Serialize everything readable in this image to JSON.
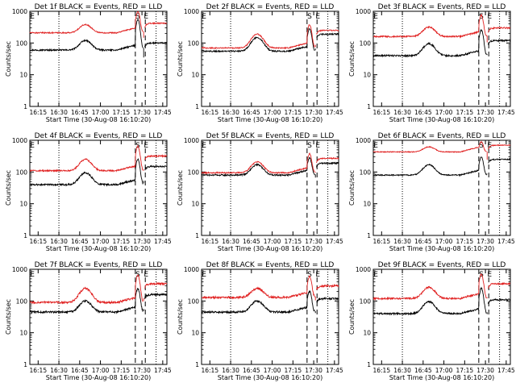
{
  "page": {
    "black_color": "#000000",
    "red_color": "#e02020"
  },
  "panels_layout": "3x3 grid, row-major",
  "chart_data": [
    {
      "type": "line",
      "title": "Det 1f BLACK = Events, RED = LLD",
      "xlabel": "Start Time (30-Aug-08 16:10:20)",
      "ylabel": "Counts/sec",
      "yscale": "log",
      "ylim": [
        1,
        1000
      ],
      "xlim": [
        16.15,
        17.8
      ],
      "xticks": [
        "16:15",
        "16:30",
        "16:45",
        "17:00",
        "17:15",
        "17:30",
        "17:45"
      ],
      "yticks": [
        "1",
        "10",
        "100",
        "1000"
      ],
      "markers": [
        {
          "label": "E",
          "x": 16.18
        },
        {
          "label": "S",
          "x": 17.45
        },
        {
          "label": "E",
          "x": 17.55
        }
      ],
      "vlines": [
        {
          "x": 16.5,
          "style": "dotted"
        },
        {
          "x": 17.42,
          "style": "dashed"
        },
        {
          "x": 17.54,
          "style": "dashed"
        },
        {
          "x": 17.67,
          "style": "dotted"
        }
      ],
      "series": [
        {
          "name": "Events",
          "color": "#000000",
          "base": 60,
          "hump": 120,
          "peak": 550,
          "noise": 0.05,
          "after": 100
        },
        {
          "name": "LLD",
          "color": "#e02020",
          "base": 210,
          "hump": 380,
          "peak": 1000,
          "noise": 0.04,
          "after": 420
        }
      ]
    },
    {
      "type": "line",
      "title": "Det 2f BLACK = Events, RED = LLD",
      "xlabel": "Start Time (30-Aug-08 16:10:20)",
      "ylabel": "Counts/sec",
      "yscale": "log",
      "ylim": [
        1,
        1000
      ],
      "xlim": [
        16.15,
        17.8
      ],
      "xticks": [
        "16:15",
        "16:30",
        "16:45",
        "17:00",
        "17:15",
        "17:30",
        "17:45"
      ],
      "yticks": [
        "1",
        "10",
        "100",
        "1000"
      ],
      "markers": [
        {
          "label": "E",
          "x": 16.18
        },
        {
          "label": "S",
          "x": 17.45
        },
        {
          "label": "E",
          "x": 17.55
        }
      ],
      "vlines": [
        {
          "x": 16.5,
          "style": "dotted"
        },
        {
          "x": 17.42,
          "style": "dashed"
        },
        {
          "x": 17.54,
          "style": "dashed"
        },
        {
          "x": 17.67,
          "style": "dotted"
        }
      ],
      "series": [
        {
          "name": "Events",
          "color": "#000000",
          "base": 55,
          "hump": 150,
          "peak": 280,
          "noise": 0.05,
          "after": 190
        },
        {
          "name": "LLD",
          "color": "#e02020",
          "base": 70,
          "hump": 190,
          "peak": 380,
          "noise": 0.04,
          "after": 250
        }
      ]
    },
    {
      "type": "line",
      "title": "Det 3f BLACK = Events, RED = LLD",
      "xlabel": "Start Time (30-Aug-08 16:10:20)",
      "ylabel": "Counts/sec",
      "yscale": "log",
      "ylim": [
        1,
        1000
      ],
      "xlim": [
        16.15,
        17.8
      ],
      "xticks": [
        "16:15",
        "16:30",
        "16:45",
        "17:00",
        "17:15",
        "17:30",
        "17:45"
      ],
      "yticks": [
        "1",
        "10",
        "100",
        "1000"
      ],
      "markers": [
        {
          "label": "E",
          "x": 16.18
        },
        {
          "label": "S",
          "x": 17.45
        },
        {
          "label": "E",
          "x": 17.55
        }
      ],
      "vlines": [
        {
          "x": 16.5,
          "style": "dotted"
        },
        {
          "x": 17.42,
          "style": "dashed"
        },
        {
          "x": 17.54,
          "style": "dashed"
        },
        {
          "x": 17.67,
          "style": "dotted"
        }
      ],
      "series": [
        {
          "name": "Events",
          "color": "#000000",
          "base": 40,
          "hump": 95,
          "peak": 260,
          "noise": 0.06,
          "after": 120
        },
        {
          "name": "LLD",
          "color": "#e02020",
          "base": 160,
          "hump": 320,
          "peak": 750,
          "noise": 0.05,
          "after": 300
        }
      ]
    },
    {
      "type": "line",
      "title": "Det 4f BLACK = Events, RED = LLD",
      "xlabel": "Start Time (30-Aug-08 16:10:20)",
      "ylabel": "Counts/sec",
      "yscale": "log",
      "ylim": [
        1,
        1000
      ],
      "xlim": [
        16.15,
        17.8
      ],
      "xticks": [
        "16:15",
        "16:30",
        "16:45",
        "17:00",
        "17:15",
        "17:30",
        "17:45"
      ],
      "yticks": [
        "1",
        "10",
        "100",
        "1000"
      ],
      "markers": [
        {
          "label": "E",
          "x": 16.18
        },
        {
          "label": "S",
          "x": 17.45
        },
        {
          "label": "E",
          "x": 17.55
        }
      ],
      "vlines": [
        {
          "x": 16.5,
          "style": "dotted"
        },
        {
          "x": 17.42,
          "style": "dashed"
        },
        {
          "x": 17.54,
          "style": "dashed"
        },
        {
          "x": 17.67,
          "style": "dotted"
        }
      ],
      "series": [
        {
          "name": "Events",
          "color": "#000000",
          "base": 40,
          "hump": 95,
          "peak": 250,
          "noise": 0.06,
          "after": 150
        },
        {
          "name": "LLD",
          "color": "#e02020",
          "base": 110,
          "hump": 250,
          "peak": 650,
          "noise": 0.05,
          "after": 320
        }
      ]
    },
    {
      "type": "line",
      "title": "Det 5f BLACK = Events, RED = LLD",
      "xlabel": "Start Time (30-Aug-08 16:10:20)",
      "ylabel": "Counts/sec",
      "yscale": "log",
      "ylim": [
        1,
        1000
      ],
      "xlim": [
        16.15,
        17.8
      ],
      "xticks": [
        "16:15",
        "16:30",
        "16:45",
        "17:00",
        "17:15",
        "17:30",
        "17:45"
      ],
      "yticks": [
        "1",
        "10",
        "100",
        "1000"
      ],
      "markers": [
        {
          "label": "E",
          "x": 16.18
        },
        {
          "label": "S",
          "x": 17.45
        },
        {
          "label": "E",
          "x": 17.55
        }
      ],
      "vlines": [
        {
          "x": 16.5,
          "style": "dotted"
        },
        {
          "x": 17.42,
          "style": "dashed"
        },
        {
          "x": 17.54,
          "style": "dashed"
        },
        {
          "x": 17.67,
          "style": "dotted"
        }
      ],
      "series": [
        {
          "name": "Events",
          "color": "#000000",
          "base": 80,
          "hump": 170,
          "peak": 280,
          "noise": 0.05,
          "after": 190
        },
        {
          "name": "LLD",
          "color": "#e02020",
          "base": 95,
          "hump": 210,
          "peak": 380,
          "noise": 0.04,
          "after": 270
        }
      ]
    },
    {
      "type": "line",
      "title": "Det 6f BLACK = Events, RED = LLD",
      "xlabel": "Start Time (30-Aug-08 16:10:20)",
      "ylabel": "Counts/sec",
      "yscale": "log",
      "ylim": [
        1,
        1000
      ],
      "xlim": [
        16.15,
        17.8
      ],
      "xticks": [
        "16:15",
        "16:30",
        "16:45",
        "17:00",
        "17:15",
        "17:30",
        "17:45"
      ],
      "yticks": [
        "1",
        "10",
        "100",
        "1000"
      ],
      "markers": [
        {
          "label": "E",
          "x": 16.18
        },
        {
          "label": "S",
          "x": 17.45
        },
        {
          "label": "E",
          "x": 17.55
        }
      ],
      "vlines": [
        {
          "x": 16.5,
          "style": "dotted"
        },
        {
          "x": 17.42,
          "style": "dashed"
        },
        {
          "x": 17.54,
          "style": "dashed"
        },
        {
          "x": 17.67,
          "style": "dotted"
        }
      ],
      "series": [
        {
          "name": "Events",
          "color": "#000000",
          "base": 80,
          "hump": 170,
          "peak": 300,
          "noise": 0.04,
          "after": 250
        },
        {
          "name": "LLD",
          "color": "#e02020",
          "base": 430,
          "hump": 620,
          "peak": 900,
          "noise": 0.03,
          "after": 700
        }
      ]
    },
    {
      "type": "line",
      "title": "Det 7f BLACK = Events, RED = LLD",
      "xlabel": "Start Time (30-Aug-08 16:10:20)",
      "ylabel": "Counts/sec",
      "yscale": "log",
      "ylim": [
        1,
        1000
      ],
      "xlim": [
        16.15,
        17.8
      ],
      "xticks": [
        "16:15",
        "16:30",
        "16:45",
        "17:00",
        "17:15",
        "17:30",
        "17:45"
      ],
      "yticks": [
        "1",
        "10",
        "100",
        "1000"
      ],
      "markers": [
        {
          "label": "E",
          "x": 16.18
        },
        {
          "label": "S",
          "x": 17.45
        },
        {
          "label": "E",
          "x": 17.55
        }
      ],
      "vlines": [
        {
          "x": 16.5,
          "style": "dotted"
        },
        {
          "x": 17.42,
          "style": "dashed"
        },
        {
          "x": 17.54,
          "style": "dashed"
        },
        {
          "x": 17.67,
          "style": "dotted"
        }
      ],
      "series": [
        {
          "name": "Events",
          "color": "#000000",
          "base": 45,
          "hump": 100,
          "peak": 250,
          "noise": 0.07,
          "after": 160
        },
        {
          "name": "LLD",
          "color": "#e02020",
          "base": 90,
          "hump": 250,
          "peak": 650,
          "noise": 0.07,
          "after": 350
        }
      ]
    },
    {
      "type": "line",
      "title": "Det 8f BLACK = Events, RED = LLD",
      "xlabel": "Start Time (30-Aug-08 16:10:20)",
      "ylabel": "Counts/sec",
      "yscale": "log",
      "ylim": [
        1,
        1000
      ],
      "xlim": [
        16.15,
        17.8
      ],
      "xticks": [
        "16:15",
        "16:30",
        "16:45",
        "17:00",
        "17:15",
        "17:30",
        "17:45"
      ],
      "yticks": [
        "1",
        "10",
        "100",
        "1000"
      ],
      "markers": [
        {
          "label": "E",
          "x": 16.18
        },
        {
          "label": "S",
          "x": 17.45
        },
        {
          "label": "E",
          "x": 17.55
        }
      ],
      "vlines": [
        {
          "x": 16.5,
          "style": "dotted"
        },
        {
          "x": 17.42,
          "style": "dashed"
        },
        {
          "x": 17.54,
          "style": "dashed"
        },
        {
          "x": 17.67,
          "style": "dotted"
        }
      ],
      "series": [
        {
          "name": "Events",
          "color": "#000000",
          "base": 45,
          "hump": 100,
          "peak": 200,
          "noise": 0.07,
          "after": 120
        },
        {
          "name": "LLD",
          "color": "#e02020",
          "base": 130,
          "hump": 250,
          "peak": 600,
          "noise": 0.07,
          "after": 300
        }
      ]
    },
    {
      "type": "line",
      "title": "Det 9f BLACK = Events, RED = LLD",
      "xlabel": "Start Time (30-Aug-08 16:10:20)",
      "ylabel": "Counts/sec",
      "yscale": "log",
      "ylim": [
        1,
        1000
      ],
      "xlim": [
        16.15,
        17.8
      ],
      "xticks": [
        "16:15",
        "16:30",
        "16:45",
        "17:00",
        "17:15",
        "17:30",
        "17:45"
      ],
      "yticks": [
        "1",
        "10",
        "100",
        "1000"
      ],
      "markers": [
        {
          "label": "E",
          "x": 16.18
        },
        {
          "label": "S",
          "x": 17.45
        },
        {
          "label": "E",
          "x": 17.55
        }
      ],
      "vlines": [
        {
          "x": 16.5,
          "style": "dotted"
        },
        {
          "x": 17.42,
          "style": "dashed"
        },
        {
          "x": 17.54,
          "style": "dashed"
        },
        {
          "x": 17.67,
          "style": "dotted"
        }
      ],
      "series": [
        {
          "name": "Events",
          "color": "#000000",
          "base": 40,
          "hump": 95,
          "peak": 250,
          "noise": 0.06,
          "after": 110
        },
        {
          "name": "LLD",
          "color": "#e02020",
          "base": 120,
          "hump": 270,
          "peak": 700,
          "noise": 0.06,
          "after": 350
        }
      ]
    }
  ]
}
